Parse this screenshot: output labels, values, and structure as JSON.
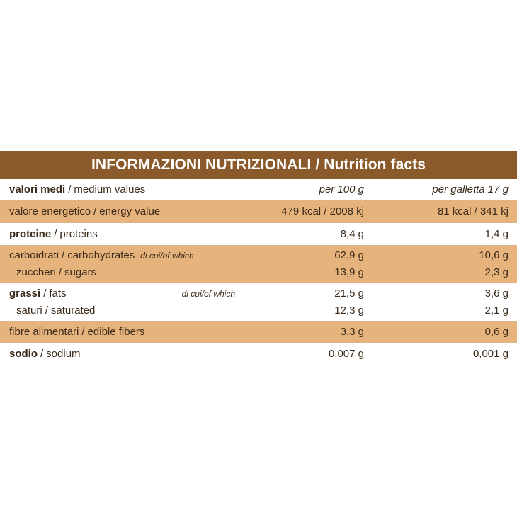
{
  "title": "INFORMAZIONI NUTRIZIONALI / Nutrition facts",
  "header": {
    "label_it": "valori medi",
    "label_en": "medium values",
    "col1": "per 100 g",
    "col2": "per galletta 17 g"
  },
  "rows": [
    {
      "label_it": "valore energetico",
      "label_en": "energy value",
      "v1": "479 kcal / 2008 kj",
      "v2": "81 kcal / 341 kj"
    },
    {
      "label_it": "proteine",
      "label_en": "proteins",
      "v1": "8,4 g",
      "v2": "1,4 g"
    },
    {
      "label_it": "carboidrati",
      "label_en": "carbohydrates",
      "note": "di cui/of which",
      "v1": "62,9 g",
      "v2": "10,6 g",
      "sub": {
        "label_it": "zuccheri",
        "label_en": "sugars",
        "v1": "13,9 g",
        "v2": "2,3 g"
      }
    },
    {
      "label_it": "grassi",
      "label_en": "fats",
      "note": "di cui/of which",
      "v1": "21,5 g",
      "v2": "3,6 g",
      "sub": {
        "label_it": "saturi",
        "label_en": "saturated",
        "v1": "12,3 g",
        "v2": "2,1 g"
      }
    },
    {
      "label_it": "fibre alimentari",
      "label_en": "edible fibers",
      "v1": "3,3 g",
      "v2": "0,6 g"
    },
    {
      "label_it": "sodio",
      "label_en": "sodium",
      "v1": "0,007 g",
      "v2": "0,001 g"
    }
  ],
  "colors": {
    "title_bg": "#8a5a2b",
    "shade": "#e7b37c",
    "border": "#d8b48c"
  }
}
